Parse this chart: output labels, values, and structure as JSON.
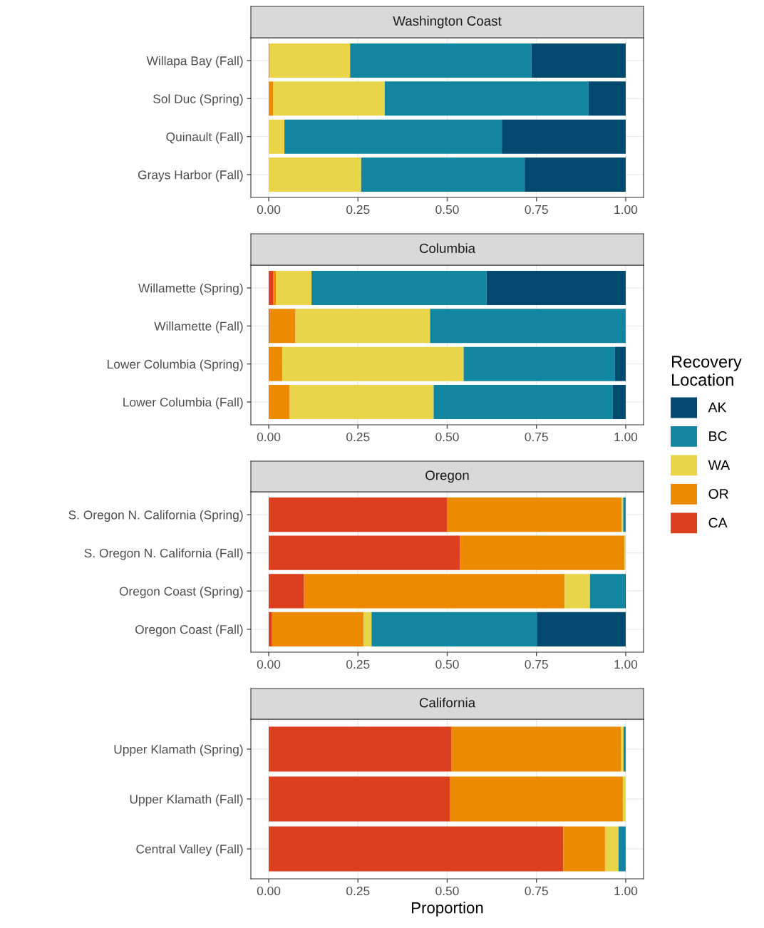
{
  "chart_data": [
    {
      "type": "bar",
      "orientation": "horizontal",
      "stacked": true,
      "title": "Washington Coast",
      "categories": [
        "Willapa Bay (Fall)",
        "Sol Duc (Spring)",
        "Quinault (Fall)",
        "Grays Harbor (Fall)"
      ],
      "xlim": [
        -0.05,
        1.05
      ],
      "xticks": [
        {
          "value": 0,
          "label": "0.00"
        },
        {
          "value": 0.25,
          "label": "0.25"
        },
        {
          "value": 0.5,
          "label": "0.50"
        },
        {
          "value": 0.75,
          "label": "0.75"
        },
        {
          "value": 1,
          "label": "1.00"
        }
      ],
      "grid": true,
      "series": [
        {
          "color": "#db3f20",
          "values": [
            0,
            0,
            0,
            0
          ]
        },
        {
          "color": "#ec8a00",
          "values": [
            0.003,
            0.012,
            0,
            0
          ]
        },
        {
          "color": "#e9d54a",
          "values": [
            0.225,
            0.313,
            0.044,
            0.259
          ]
        },
        {
          "color": "#1286a1",
          "values": [
            0.508,
            0.571,
            0.609,
            0.458
          ]
        },
        {
          "color": "#01496f",
          "values": [
            0.264,
            0.104,
            0.347,
            0.283
          ]
        }
      ]
    },
    {
      "type": "bar",
      "orientation": "horizontal",
      "stacked": true,
      "title": "Columbia",
      "categories": [
        "Willamette (Spring)",
        "Willamette (Fall)",
        "Lower Columbia (Spring)",
        "Lower Columbia (Fall)"
      ],
      "xlim": [
        -0.05,
        1.05
      ],
      "xticks": [
        {
          "value": 0,
          "label": "0.00"
        },
        {
          "value": 0.25,
          "label": "0.25"
        },
        {
          "value": 0.5,
          "label": "0.50"
        },
        {
          "value": 0.75,
          "label": "0.75"
        },
        {
          "value": 1,
          "label": "1.00"
        }
      ],
      "grid": true,
      "legend": "right",
      "legend_title": "Recovery Location",
      "series": [
        {
          "name": "CA",
          "color": "#db3f20",
          "values": [
            0.012,
            0.003,
            0,
            0
          ]
        },
        {
          "name": "OR",
          "color": "#ec8a00",
          "values": [
            0.008,
            0.072,
            0.038,
            0.059
          ]
        },
        {
          "name": "WA",
          "color": "#e9d54a",
          "values": [
            0.1,
            0.377,
            0.508,
            0.403
          ]
        },
        {
          "name": "BC",
          "color": "#1286a1",
          "values": [
            0.49,
            0.548,
            0.424,
            0.501
          ]
        },
        {
          "name": "AK",
          "color": "#01496f",
          "values": [
            0.39,
            0,
            0.03,
            0.037
          ]
        }
      ]
    },
    {
      "type": "bar",
      "orientation": "horizontal",
      "stacked": true,
      "title": "Oregon",
      "categories": [
        "S. Oregon N. California (Spring)",
        "S. Oregon N. California (Fall)",
        "Oregon Coast (Spring)",
        "Oregon Coast (Fall)"
      ],
      "xlim": [
        -0.05,
        1.05
      ],
      "xticks": [
        {
          "value": 0,
          "label": "0.00"
        },
        {
          "value": 0.25,
          "label": "0.25"
        },
        {
          "value": 0.5,
          "label": "0.50"
        },
        {
          "value": 0.75,
          "label": "0.75"
        },
        {
          "value": 1,
          "label": "1.00"
        }
      ],
      "grid": true,
      "series": [
        {
          "color": "#db3f20",
          "values": [
            0.499,
            0.536,
            0.099,
            0.008
          ]
        },
        {
          "color": "#ec8a00",
          "values": [
            0.49,
            0.461,
            0.73,
            0.258
          ]
        },
        {
          "color": "#e9d54a",
          "values": [
            0.004,
            0.003,
            0.071,
            0.022
          ]
        },
        {
          "color": "#1286a1",
          "values": [
            0.007,
            0,
            0.098,
            0.463
          ]
        },
        {
          "color": "#01496f",
          "values": [
            0,
            0,
            0.002,
            0.249
          ]
        }
      ]
    },
    {
      "type": "bar",
      "orientation": "horizontal",
      "stacked": true,
      "title": "California",
      "xlabel": "Proportion",
      "categories": [
        "Upper Klamath (Spring)",
        "Upper Klamath (Fall)",
        "Central Valley (Fall)"
      ],
      "xlim": [
        -0.05,
        1.05
      ],
      "xticks": [
        {
          "value": 0,
          "label": "0.00"
        },
        {
          "value": 0.25,
          "label": "0.25"
        },
        {
          "value": 0.5,
          "label": "0.50"
        },
        {
          "value": 0.75,
          "label": "0.75"
        },
        {
          "value": 1,
          "label": "1.00"
        }
      ],
      "grid": true,
      "series": [
        {
          "color": "#db3f20",
          "values": [
            0.511,
            0.507,
            0.825
          ]
        },
        {
          "color": "#ec8a00",
          "values": [
            0.476,
            0.485,
            0.117
          ]
        },
        {
          "color": "#e9d54a",
          "values": [
            0.007,
            0.008,
            0.038
          ]
        },
        {
          "color": "#1286a1",
          "values": [
            0.006,
            0,
            0.02
          ]
        },
        {
          "color": "#01496f",
          "values": [
            0,
            0,
            0
          ]
        }
      ]
    }
  ]
}
